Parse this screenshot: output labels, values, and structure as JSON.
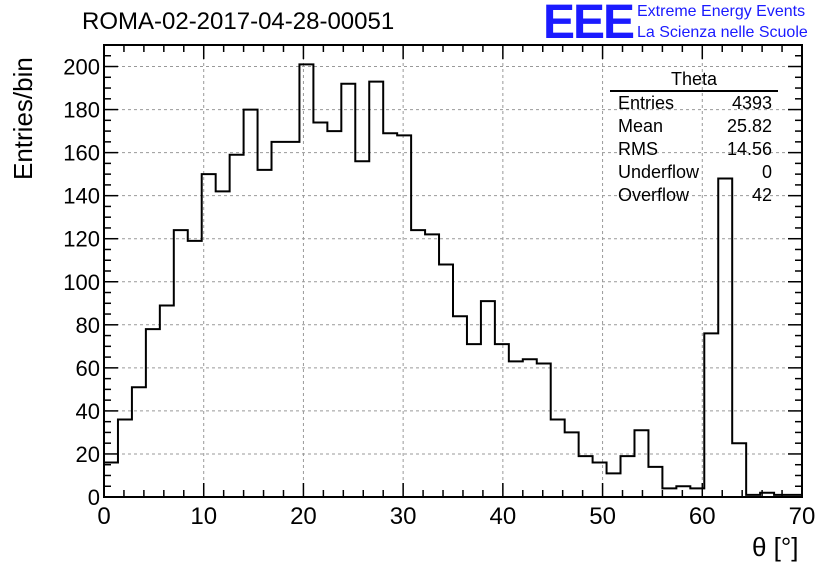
{
  "title": "ROMA-02-2017-04-28-00051",
  "logo": {
    "mark": "EEE",
    "line1": "Extreme Energy Events",
    "line2": "La Scienza nelle Scuole",
    "color": "#1a1aff"
  },
  "stats": {
    "title": "Theta",
    "rows": [
      {
        "label": "Entries",
        "value": "4393"
      },
      {
        "label": "Mean",
        "value": "25.82"
      },
      {
        "label": "RMS",
        "value": "14.56"
      },
      {
        "label": "Underflow",
        "value": "0"
      },
      {
        "label": "Overflow",
        "value": "42"
      }
    ]
  },
  "chart_data": {
    "type": "bar",
    "histogram": true,
    "title": "ROMA-02-2017-04-28-00051",
    "xlabel": "θ [°]",
    "ylabel": "Entries/bin",
    "xlim": [
      0,
      70
    ],
    "ylim": [
      0,
      210
    ],
    "grid": true,
    "bin_width": 1.4,
    "bin_edges_start": 0,
    "xticks": [
      0,
      10,
      20,
      30,
      40,
      50,
      60,
      70
    ],
    "yticks": [
      0,
      20,
      40,
      60,
      80,
      100,
      120,
      140,
      160,
      180,
      200
    ],
    "values": [
      16,
      36,
      51,
      78,
      89,
      124,
      119,
      150,
      142,
      159,
      180,
      152,
      165,
      165,
      201,
      174,
      170,
      192,
      156,
      193,
      169,
      168,
      124,
      122,
      108,
      84,
      71,
      91,
      71,
      63,
      64,
      62,
      36,
      30,
      19,
      16,
      11,
      19,
      31,
      14,
      4,
      5,
      4,
      76,
      148,
      25,
      1,
      2,
      1,
      1
    ]
  }
}
